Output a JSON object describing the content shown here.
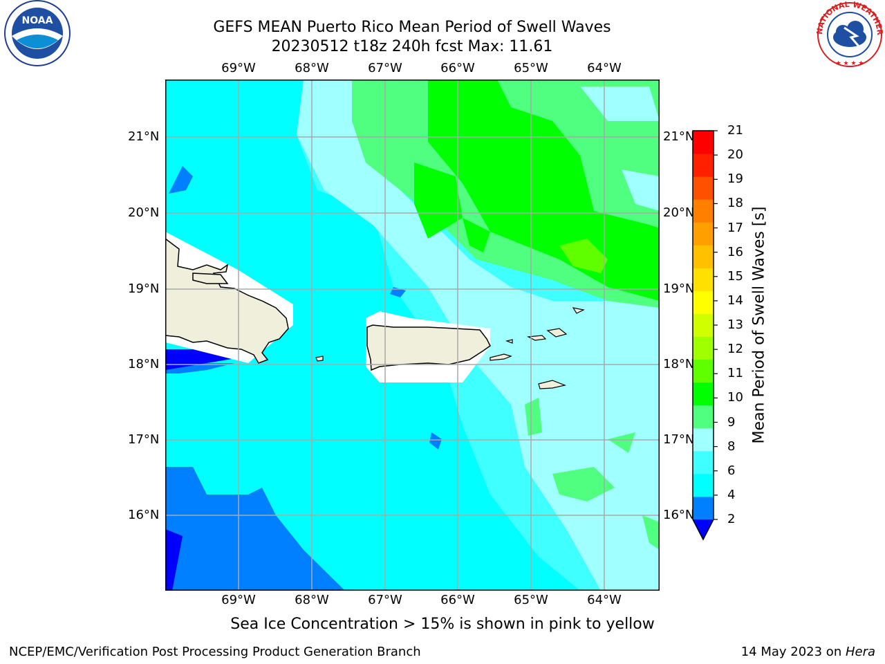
{
  "title": {
    "line1": "GEFS MEAN Puerto Rico Mean Period of Swell Waves",
    "line2": "20230512 t18z 240h fcst   Max: 11.61"
  },
  "map": {
    "lon_labels": [
      "69°W",
      "68°W",
      "67°W",
      "66°W",
      "65°W",
      "64°W"
    ],
    "lat_labels": [
      "21°N",
      "20°N",
      "19°N",
      "18°N",
      "17°N",
      "16°N"
    ],
    "land_color": "#efefdc",
    "ocean_base_color": "#00ffff"
  },
  "colorbar": {
    "label": "Mean Period of Swell Waves [s]",
    "ticks": [
      "21",
      "20",
      "19",
      "18",
      "17",
      "16",
      "15",
      "14",
      "13",
      "12",
      "11",
      "10",
      "9",
      "8",
      "6",
      "4",
      "2"
    ],
    "levels": [
      {
        "color": "#0000ff"
      },
      {
        "color": "#0080ff"
      },
      {
        "color": "#00ffff"
      },
      {
        "color": "#40ffff"
      },
      {
        "color": "#a0ffff"
      },
      {
        "color": "#50ff80"
      },
      {
        "color": "#00ff00"
      },
      {
        "color": "#60ff00"
      },
      {
        "color": "#a0ff00"
      },
      {
        "color": "#d0ff00"
      },
      {
        "color": "#ffff00"
      },
      {
        "color": "#ffe000"
      },
      {
        "color": "#ffc000"
      },
      {
        "color": "#ffa000"
      },
      {
        "color": "#ff8000"
      },
      {
        "color": "#ff5000"
      },
      {
        "color": "#ff2000"
      },
      {
        "color": "#ff0000"
      }
    ]
  },
  "caption": "Sea Ice Concentration > 15% is shown in pink to yellow",
  "footer": {
    "left": "NCEP/EMC/Verification Post Processing Product Generation Branch",
    "right_date": "14 May 2023 on ",
    "right_host": "Hera"
  },
  "logos": {
    "noaa": "NOAA",
    "nws_text": "NATIONAL WEATHER SERVICE"
  }
}
